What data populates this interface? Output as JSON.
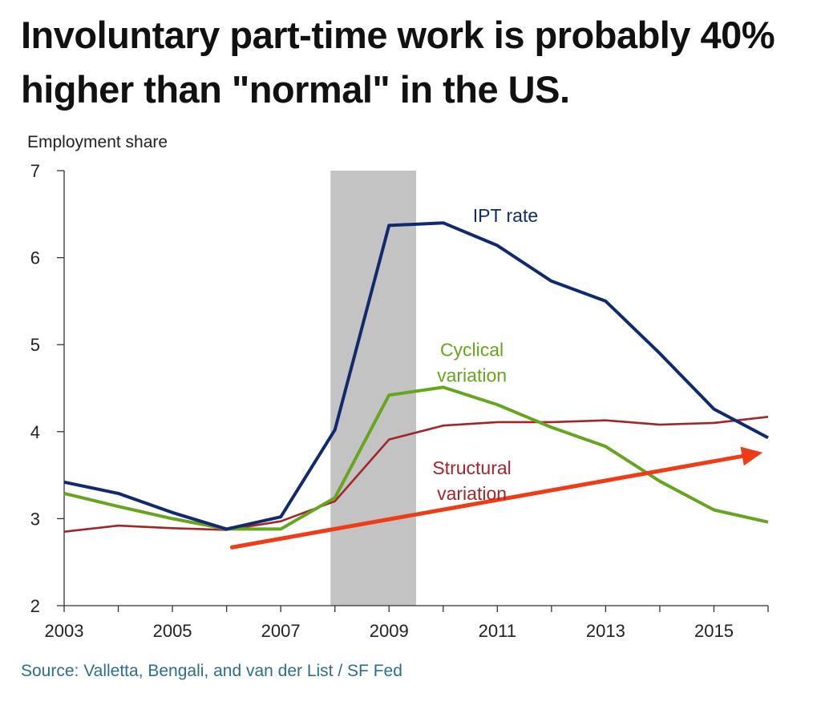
{
  "title": "Involuntary part-time work is probably 40% higher than \"normal\" in the US.",
  "source": "Source: Valletta, Bengali, and van der List / SF Fed",
  "chart_data": {
    "type": "line",
    "ylabel": "Employment share",
    "xlim": [
      2003,
      2016
    ],
    "ylim": [
      2,
      7
    ],
    "xticks": [
      2003,
      2005,
      2007,
      2009,
      2011,
      2013,
      2015
    ],
    "yticks": [
      2,
      3,
      4,
      5,
      6,
      7
    ],
    "grid": false,
    "legend": "none",
    "recession_shading": {
      "start": 2007.92,
      "end": 2009.5,
      "color": "#c3c3c3"
    },
    "series": [
      {
        "name": "IPT rate",
        "color": "#0f2a6e",
        "x": [
          2003,
          2004,
          2005,
          2006,
          2007,
          2008,
          2009,
          2010,
          2011,
          2012,
          2013,
          2014,
          2015,
          2016
        ],
        "values": [
          3.42,
          3.29,
          3.07,
          2.88,
          3.02,
          4.02,
          6.37,
          6.4,
          6.14,
          5.73,
          5.5,
          4.9,
          4.26,
          3.93
        ]
      },
      {
        "name": "Cyclical variation",
        "color": "#66a61e",
        "x": [
          2003,
          2004,
          2005,
          2006,
          2007,
          2008,
          2009,
          2010,
          2011,
          2012,
          2013,
          2014,
          2015,
          2016
        ],
        "values": [
          3.29,
          3.14,
          3.0,
          2.88,
          2.88,
          3.24,
          4.42,
          4.51,
          4.31,
          4.05,
          3.83,
          3.43,
          3.1,
          2.96
        ]
      },
      {
        "name": "Structural variation",
        "color": "#a52428",
        "x": [
          2003,
          2004,
          2005,
          2006,
          2007,
          2008,
          2009,
          2010,
          2011,
          2012,
          2013,
          2014,
          2015,
          2016
        ],
        "values": [
          2.85,
          2.92,
          2.89,
          2.87,
          2.97,
          3.2,
          3.91,
          4.07,
          4.11,
          4.11,
          4.13,
          4.08,
          4.1,
          4.17
        ]
      }
    ],
    "annotations": [
      {
        "text": "IPT rate",
        "lines": [
          "IPT rate"
        ],
        "series": "IPT rate",
        "x": 2011.15,
        "y": 6.41,
        "color": "#0f2a6e"
      },
      {
        "text": "Cyclical variation",
        "lines": [
          "Cyclical",
          "variation"
        ],
        "series": "Cyclical variation",
        "x": 2010.53,
        "y": 4.87,
        "color": "#66a61e"
      },
      {
        "text": "Structural variation",
        "lines": [
          "Structural",
          "variation"
        ],
        "series": "Structural variation",
        "x": 2010.53,
        "y": 3.51,
        "color": "#a52428"
      }
    ],
    "trend_arrow": {
      "x": [
        2006.1,
        2015.9
      ],
      "y": [
        2.67,
        3.76
      ],
      "color": "#f03c16"
    }
  }
}
